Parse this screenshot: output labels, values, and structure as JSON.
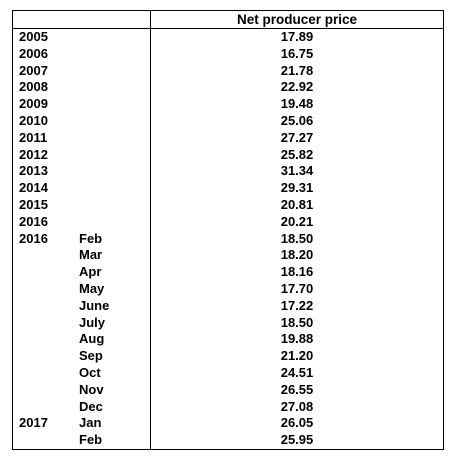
{
  "table": {
    "header": {
      "year": "",
      "month": "",
      "price": "Net producer price"
    },
    "rows": [
      {
        "year": "2005",
        "month": "",
        "price": "17.89"
      },
      {
        "year": "2006",
        "month": "",
        "price": "16.75"
      },
      {
        "year": "2007",
        "month": "",
        "price": "21.78"
      },
      {
        "year": "2008",
        "month": "",
        "price": "22.92"
      },
      {
        "year": "2009",
        "month": "",
        "price": "19.48"
      },
      {
        "year": "2010",
        "month": "",
        "price": "25.06"
      },
      {
        "year": "2011",
        "month": "",
        "price": "27.27"
      },
      {
        "year": "2012",
        "month": "",
        "price": "25.82"
      },
      {
        "year": "2013",
        "month": "",
        "price": "31.34"
      },
      {
        "year": "2014",
        "month": "",
        "price": "29.31"
      },
      {
        "year": "2015",
        "month": "",
        "price": "20.81"
      },
      {
        "year": "2016",
        "month": "",
        "price": "20.21"
      },
      {
        "year": "2016",
        "month": "Feb",
        "price": "18.50"
      },
      {
        "year": "",
        "month": "Mar",
        "price": "18.20"
      },
      {
        "year": "",
        "month": "Apr",
        "price": "18.16"
      },
      {
        "year": "",
        "month": "May",
        "price": "17.70"
      },
      {
        "year": "",
        "month": "June",
        "price": "17.22"
      },
      {
        "year": "",
        "month": "July",
        "price": "18.50"
      },
      {
        "year": "",
        "month": "Aug",
        "price": "19.88"
      },
      {
        "year": "",
        "month": "Sep",
        "price": "21.20"
      },
      {
        "year": "",
        "month": "Oct",
        "price": "24.51"
      },
      {
        "year": "",
        "month": "Nov",
        "price": "26.55"
      },
      {
        "year": "",
        "month": "Dec",
        "price": "27.08"
      },
      {
        "year": "2017",
        "month": "Jan",
        "price": "26.05"
      },
      {
        "year": "",
        "month": "Feb",
        "price": "25.95"
      }
    ]
  }
}
